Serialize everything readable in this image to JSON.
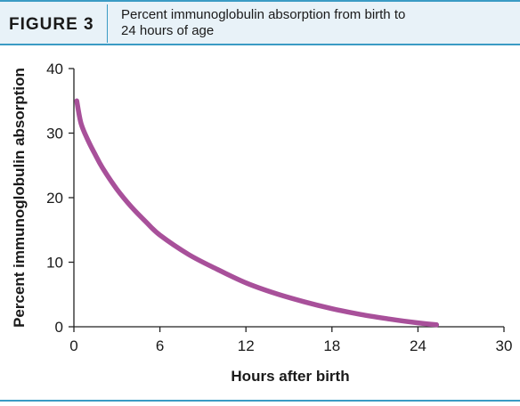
{
  "figure": {
    "label": "FIGURE 3",
    "title_line1": "Percent immunoglobulin absorption from birth to",
    "title_line2": "24 hours of age"
  },
  "colors": {
    "accent": "#3a9bc4",
    "header_bg": "#e8f2f8",
    "series": "#a8509a"
  },
  "chart_data": {
    "type": "line",
    "xlabel": "Hours after birth",
    "ylabel": "Percent immunoglobulin absorption",
    "xlim": [
      0,
      30
    ],
    "ylim": [
      0,
      40
    ],
    "xticks": [
      0,
      6,
      12,
      18,
      24,
      30
    ],
    "yticks": [
      0,
      10,
      20,
      30,
      40
    ],
    "grid": false,
    "series": [
      {
        "x": [
          0.2,
          0.5,
          1,
          1.5,
          2,
          3,
          4,
          5,
          6,
          8,
          10,
          12,
          14,
          16,
          18,
          20,
          22,
          24,
          25.3
        ],
        "y": [
          35,
          31.5,
          28.8,
          26.6,
          24.6,
          21.3,
          18.6,
          16.3,
          14.2,
          11.2,
          8.9,
          6.8,
          5.2,
          3.9,
          2.8,
          1.9,
          1.2,
          0.6,
          0.3
        ]
      }
    ]
  }
}
